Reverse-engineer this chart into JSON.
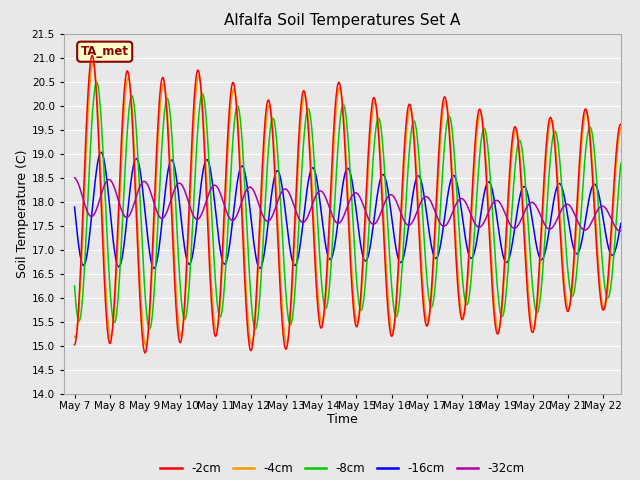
{
  "title": "Alfalfa Soil Temperatures Set A",
  "xlabel": "Time",
  "ylabel": "Soil Temperature (C)",
  "ylim": [
    14.0,
    21.5
  ],
  "x_tick_labels": [
    "May 7",
    "May 8",
    "May 9",
    "May 10",
    "May 11",
    "May 12",
    "May 13",
    "May 14",
    "May 15",
    "May 16",
    "May 17",
    "May 18",
    "May 19",
    "May 20",
    "May 21",
    "May 22"
  ],
  "colors": {
    "-2cm": "#ff0000",
    "-4cm": "#ff9900",
    "-8cm": "#00cc00",
    "-16cm": "#0000ff",
    "-32cm": "#aa00aa"
  },
  "legend_labels": [
    "-2cm",
    "-4cm",
    "-8cm",
    "-16cm",
    "-32cm"
  ],
  "annotation": "TA_met",
  "bg_color": "#e8e8e8",
  "grid_color": "#ffffff",
  "title_fontsize": 11,
  "axis_label_fontsize": 9,
  "tick_fontsize": 7.5,
  "legend_fontsize": 8.5
}
